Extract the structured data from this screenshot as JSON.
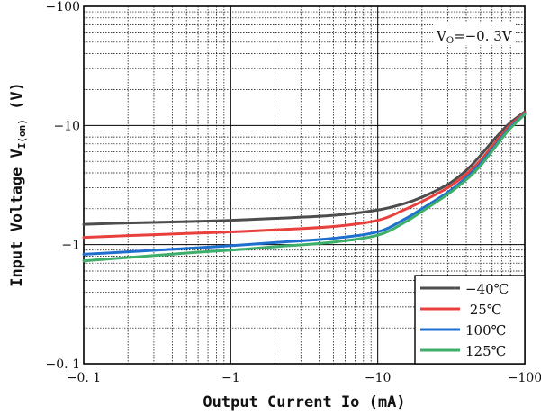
{
  "chart_data": {
    "type": "line",
    "xlabel": "Output Current Io (mA)",
    "ylabel": {
      "main": "Input Voltage V",
      "subscript": "I(on)",
      "unit": " (V)"
    },
    "x_scale": "log",
    "y_scale": "log",
    "xlim": [
      -0.1,
      -100
    ],
    "ylim": [
      -0.1,
      -100
    ],
    "x_ticks": [
      {
        "value": -0.1,
        "label": "−0. 1"
      },
      {
        "value": -1,
        "label": "−1"
      },
      {
        "value": -10,
        "label": "−10"
      },
      {
        "value": -100,
        "label": "−100"
      }
    ],
    "y_ticks": [
      {
        "value": -0.1,
        "label": "−0. 1"
      },
      {
        "value": -1,
        "label": "−1"
      },
      {
        "value": -10,
        "label": "−10"
      },
      {
        "value": -100,
        "label": "−100"
      }
    ],
    "grid": true,
    "annotation": {
      "prefix": "V",
      "subscript": "O",
      "suffix": "=−0. 3V"
    },
    "legend_position": "bottom-right",
    "x": [
      -0.1,
      -0.2,
      -0.5,
      -1,
      -2,
      -5,
      -10,
      -15,
      -20,
      -30,
      -40,
      -50,
      -60,
      -70,
      -80,
      -100
    ],
    "series": [
      {
        "name": "−40℃",
        "color": "#4d4d4d",
        "values": [
          -1.48,
          -1.52,
          -1.56,
          -1.6,
          -1.66,
          -1.76,
          -1.95,
          -2.2,
          -2.5,
          -3.2,
          -4.2,
          -5.6,
          -7.3,
          -9.0,
          -10.6,
          -13.0
        ]
      },
      {
        "name": " 25℃",
        "color": "#e8403c",
        "values": [
          -1.15,
          -1.19,
          -1.24,
          -1.28,
          -1.33,
          -1.42,
          -1.6,
          -1.95,
          -2.3,
          -3.0,
          -3.9,
          -5.1,
          -6.7,
          -8.4,
          -10.1,
          -12.8
        ]
      },
      {
        "name": "100℃",
        "color": "#1f6fcf",
        "values": [
          -0.83,
          -0.87,
          -0.93,
          -0.98,
          -1.04,
          -1.13,
          -1.28,
          -1.62,
          -2.0,
          -2.75,
          -3.65,
          -4.8,
          -6.3,
          -8.0,
          -9.7,
          -12.5
        ]
      },
      {
        "name": "125℃",
        "color": "#3daf6a",
        "values": [
          -0.73,
          -0.78,
          -0.85,
          -0.9,
          -0.96,
          -1.05,
          -1.2,
          -1.52,
          -1.9,
          -2.65,
          -3.5,
          -4.6,
          -6.1,
          -7.8,
          -9.5,
          -12.4
        ]
      }
    ]
  }
}
